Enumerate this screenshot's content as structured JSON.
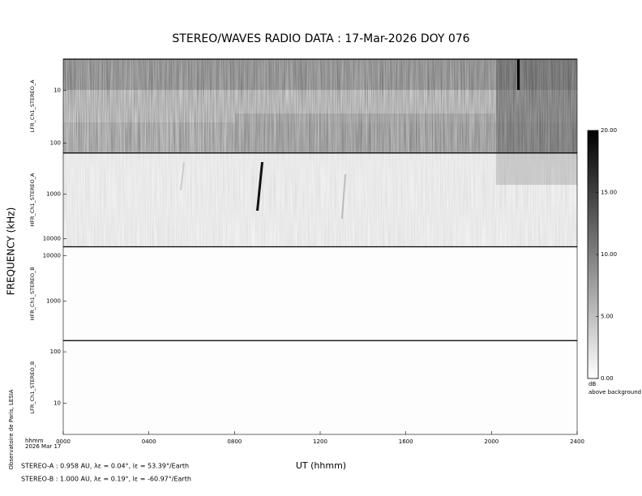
{
  "chart_data": {
    "type": "spectrogram",
    "title": "STEREO/WAVES  RADIO  DATA : 17-Mar-2026  DOY 076",
    "ylabel": "FREQUENCY (kHz)",
    "xlabel": "UT (hhmm)",
    "xlim": [
      0,
      24
    ],
    "xticks": [
      {
        "value": 0,
        "label": "0000"
      },
      {
        "value": 4,
        "label": "0400"
      },
      {
        "value": 8,
        "label": "0800"
      },
      {
        "value": 12,
        "label": "1200"
      },
      {
        "value": 16,
        "label": "1600"
      },
      {
        "value": 20,
        "label": "2000"
      },
      {
        "value": 24,
        "label": "2400"
      }
    ],
    "log_y": true,
    "panels": [
      {
        "name": "LFR_Ch1_STEREO_A",
        "ylim": [
          2.6,
          153
        ],
        "yticks": [
          10,
          100
        ]
      },
      {
        "name": "HFR_Ch1_STEREO_A",
        "ylim": [
          118,
          15200
        ],
        "yticks": [
          1000,
          10000
        ]
      },
      {
        "name": "HFR_Ch1_STEREO_B",
        "ylim": [
          15700,
          133
        ],
        "yticks": [
          10000,
          1000
        ]
      },
      {
        "name": "LFR_Ch1_STEREO_B",
        "ylim": [
          165,
          2.5
        ],
        "yticks": [
          100,
          10
        ]
      }
    ],
    "colorbar": {
      "ylim": [
        0,
        20
      ],
      "yticks": [
        {
          "value": 0,
          "label": "0.00"
        },
        {
          "value": 5,
          "label": "5.00"
        },
        {
          "value": 10,
          "label": "10.00"
        },
        {
          "value": 15,
          "label": "15.00"
        },
        {
          "value": 20,
          "label": "20.00"
        }
      ],
      "label": "dB",
      "label2": "above background"
    },
    "date_label": "hhmm",
    "date": "2026 Mar 17",
    "credit": "Observatoire de Paris, LESIA",
    "footer": [
      "STEREO-A : 0.958 AU, λε = 0.04°, lε = 53.39°/Earth",
      "STEREO-B : 1.000 AU, λε = 0.19°, lε = -60.97°/Earth"
    ]
  }
}
